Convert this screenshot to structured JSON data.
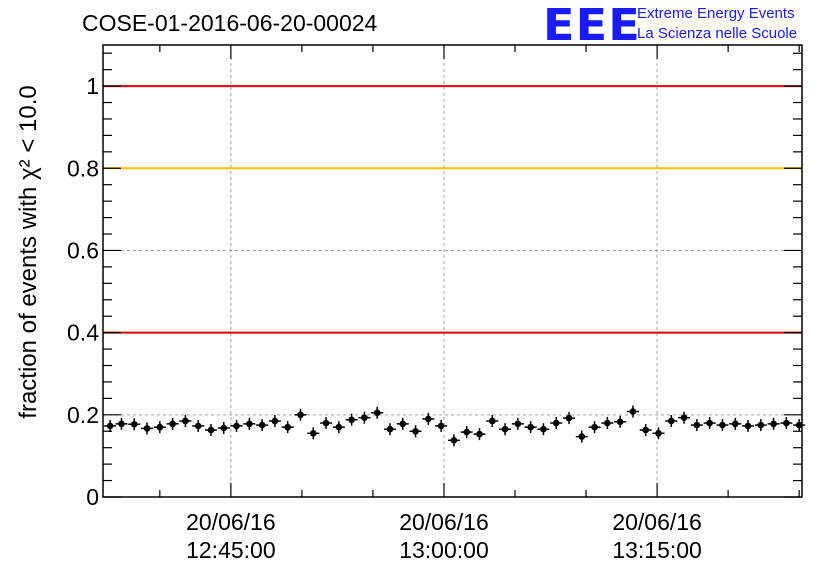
{
  "title": "COSE-01-2016-06-20-00024",
  "logo": {
    "mark": "EEE",
    "line1": "Extreme Energy Events",
    "line2": "La Scienza nelle Scuole",
    "color": "#1a1aff"
  },
  "chart_data": {
    "type": "scatter",
    "title": "COSE-01-2016-06-20-00024",
    "ylabel": "fraction of events with χ² < 10.0",
    "xlabel": "",
    "ylim": [
      0,
      1.1
    ],
    "yticks": [
      "0",
      "0.2",
      "0.4",
      "0.6",
      "0.8",
      "1"
    ],
    "yticks_values": [
      0,
      0.2,
      0.4,
      0.6,
      0.8,
      1.0
    ],
    "x_range_minutes": [
      36.0,
      85.2
    ],
    "xticks": [
      {
        "date": "20/06/16",
        "time": "12:45:00",
        "minutes": 45
      },
      {
        "date": "20/06/16",
        "time": "13:00:00",
        "minutes": 60
      },
      {
        "date": "20/06/16",
        "time": "13:15:00",
        "minutes": 75
      }
    ],
    "grid": true,
    "reference_lines": [
      {
        "y": 1.0,
        "color": "#e00000"
      },
      {
        "y": 0.8,
        "color": "#ffc000"
      },
      {
        "y": 0.4,
        "color": "#e00000"
      }
    ],
    "series": [
      {
        "color": "#000000",
        "x_minutes": [
          36.5,
          37.3,
          38.2,
          39.1,
          40.0,
          40.9,
          41.8,
          42.7,
          43.6,
          44.5,
          45.4,
          46.3,
          47.2,
          48.1,
          49.0,
          49.9,
          50.8,
          51.7,
          52.6,
          53.5,
          54.4,
          55.3,
          56.2,
          57.1,
          58.0,
          58.9,
          59.8,
          60.7,
          61.6,
          62.5,
          63.4,
          64.3,
          65.2,
          66.1,
          67.0,
          67.9,
          68.8,
          69.7,
          70.6,
          71.5,
          72.4,
          73.3,
          74.2,
          75.1,
          76.0,
          76.9,
          77.8,
          78.7,
          79.6,
          80.5,
          81.4,
          82.3,
          83.2,
          84.1,
          85.0
        ],
        "values": [
          0.173,
          0.178,
          0.177,
          0.167,
          0.17,
          0.178,
          0.185,
          0.173,
          0.163,
          0.168,
          0.173,
          0.178,
          0.175,
          0.185,
          0.17,
          0.2,
          0.155,
          0.18,
          0.17,
          0.188,
          0.193,
          0.205,
          0.165,
          0.178,
          0.16,
          0.19,
          0.173,
          0.138,
          0.158,
          0.153,
          0.185,
          0.165,
          0.178,
          0.17,
          0.165,
          0.18,
          0.192,
          0.147,
          0.17,
          0.18,
          0.183,
          0.208,
          0.163,
          0.155,
          0.185,
          0.193,
          0.175,
          0.18,
          0.175,
          0.178,
          0.173,
          0.175,
          0.178,
          0.18,
          0.175
        ]
      }
    ]
  }
}
